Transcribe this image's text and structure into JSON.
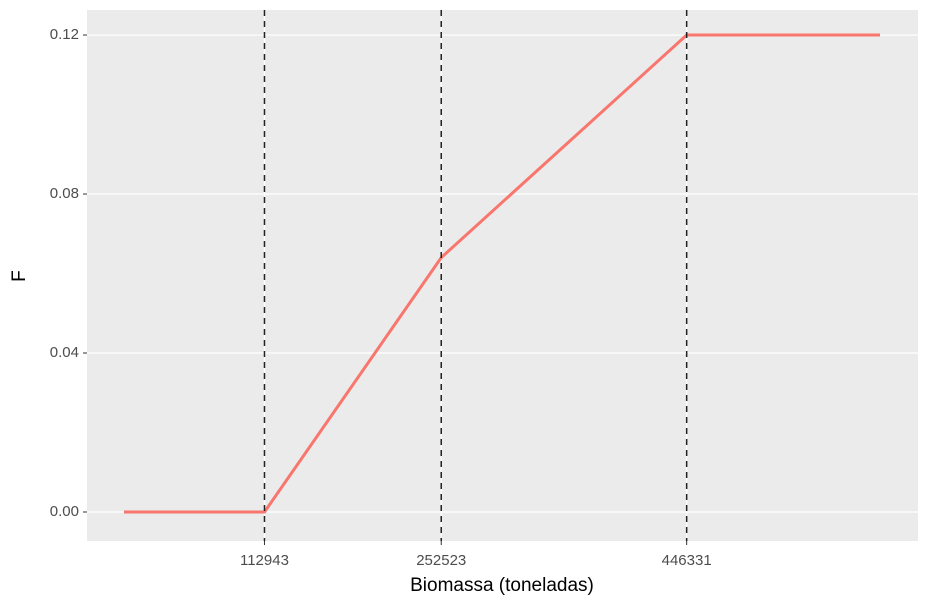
{
  "chart_data": {
    "type": "line",
    "x_label": "Biomassa (toneladas)",
    "y_label": "F",
    "x": [
      2000,
      112943,
      252523,
      446331,
      599000
    ],
    "series": [
      {
        "color": "#F8766D",
        "values": [
          0,
          0,
          0.064,
          0.12,
          0.12
        ]
      }
    ],
    "xlim": [
      -27200,
      629000
    ],
    "ylim": [
      -0.0073,
      0.1263
    ],
    "xticks": [
      112943,
      252523,
      446331
    ],
    "yticks": [
      {
        "value": 0,
        "label": "0.00"
      },
      0.04,
      0.08,
      0.12
    ],
    "grid": true,
    "xtick_lines": "dashed"
  }
}
